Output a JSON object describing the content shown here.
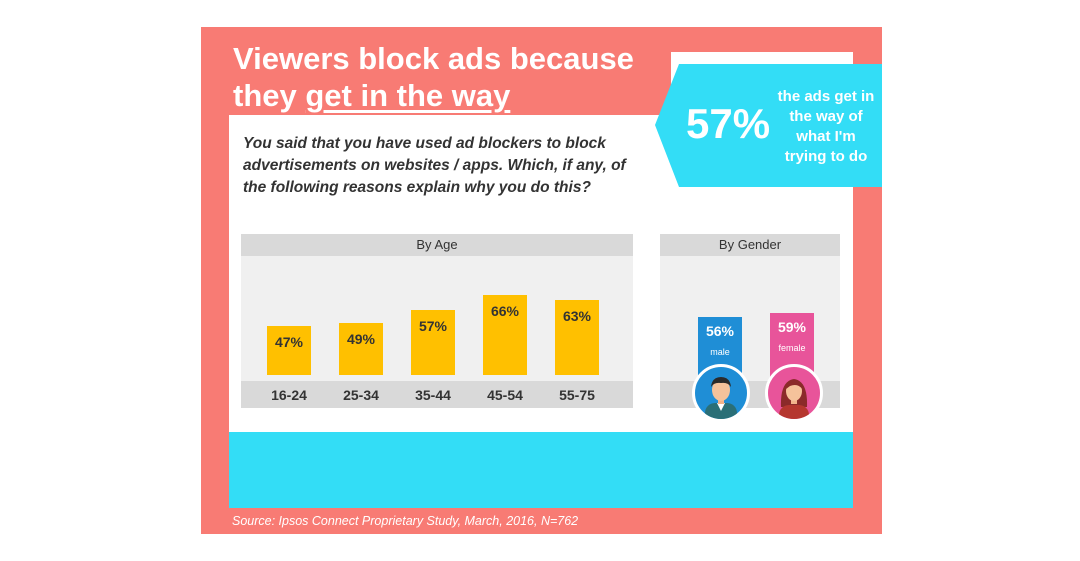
{
  "title": {
    "line1": "Viewers block ads because",
    "line2_prefix": "they ",
    "line2_emph": "get in the way"
  },
  "callout": {
    "pct": "57%",
    "text": "the ads get in the way of what I'm trying to do"
  },
  "question": "You said that you have used ad blockers to block advertisements on websites / apps. Which, if any, of the following reasons explain why you do this?",
  "age_panel": {
    "header": "By Age"
  },
  "gender_panel": {
    "header": "By Gender"
  },
  "source": "Source: Ipsos Connect Proprietary Study, March, 2016, N=762",
  "colors": {
    "frame": "#f87b74",
    "cyan": "#33ddf6",
    "bar": "#ffc000",
    "male": "#1f8ed6",
    "female": "#e8549a"
  },
  "chart_data": [
    {
      "type": "bar",
      "title": "By Age",
      "categories": [
        "16-24",
        "25-34",
        "35-44",
        "45-54",
        "55-75"
      ],
      "values": [
        47,
        49,
        57,
        66,
        63
      ],
      "value_labels": [
        "47%",
        "49%",
        "57%",
        "66%",
        "63%"
      ],
      "ylim": [
        0,
        100
      ]
    },
    {
      "type": "bar",
      "title": "By Gender",
      "categories": [
        "male",
        "female"
      ],
      "values": [
        56,
        59
      ],
      "value_labels": [
        "56%",
        "59%"
      ],
      "ylim": [
        0,
        100
      ]
    }
  ]
}
